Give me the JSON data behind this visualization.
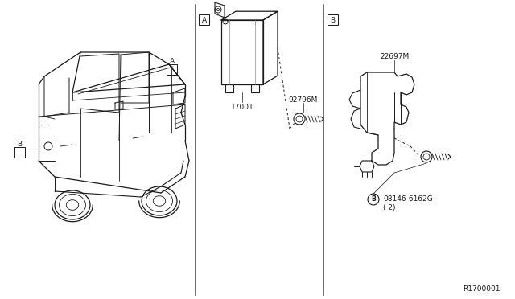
{
  "bg_color": "#ffffff",
  "line_color": "#1a1a1a",
  "fig_width": 6.4,
  "fig_height": 3.72,
  "dpi": 100,
  "diagram_id": "R1700001",
  "part_17001": "17001",
  "part_92796M": "92796M",
  "part_22697M": "22697M",
  "part_08146": "08146-6162G",
  "part_08146_qty": "( 2)",
  "div1x": 242,
  "div2x": 402
}
